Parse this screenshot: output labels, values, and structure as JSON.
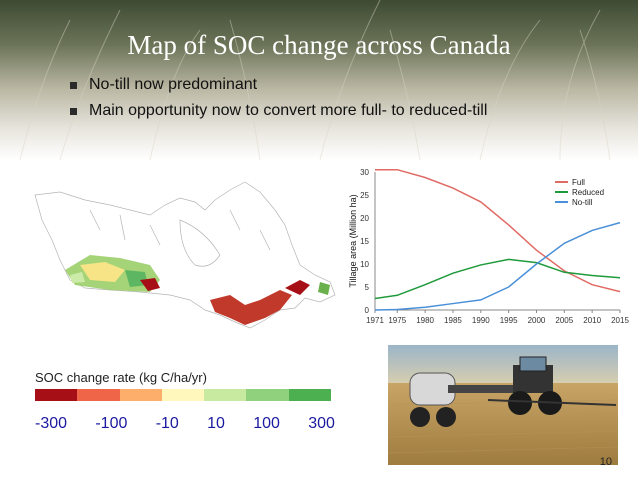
{
  "slide": {
    "title": "Map of SOC change across Canada",
    "bullets": [
      "No-till now predominant",
      "Main opportunity now to convert more full- to reduced-till"
    ],
    "page_number": "10"
  },
  "legend": {
    "title": "SOC change rate (kg C/ha/yr)",
    "labels": [
      "-300",
      "-100",
      "-10",
      "10",
      "100",
      "300"
    ],
    "colors": [
      "#a50f15",
      "#ef6548",
      "#fdae6b",
      "#fff7bc",
      "#c7e9a0",
      "#8fd17c",
      "#4caf50"
    ]
  },
  "chart_data": {
    "type": "line",
    "ylabel": "Tillage area (Million ha)",
    "xlabel": "",
    "ylim": [
      0,
      30
    ],
    "y_ticks": [
      "0",
      "5",
      "10",
      "15",
      "20",
      "25",
      "30"
    ],
    "x_ticks": [
      "1971",
      "1975",
      "1980",
      "1985",
      "1990",
      "1995",
      "2000",
      "2005",
      "2010",
      "2015"
    ],
    "legend_position": "top-right",
    "series": [
      {
        "name": "Full",
        "color": "#e06b64",
        "x": [
          1971,
          1975,
          1980,
          1985,
          1990,
          1995,
          2000,
          2005,
          2010,
          2015
        ],
        "y": [
          30.5,
          30.5,
          28.8,
          26.5,
          23.5,
          18.5,
          13.0,
          8.5,
          5.5,
          4.0
        ]
      },
      {
        "name": "Reduced",
        "color": "#1f9a3a",
        "x": [
          1971,
          1975,
          1980,
          1985,
          1990,
          1995,
          2000,
          2005,
          2010,
          2015
        ],
        "y": [
          2.5,
          3.2,
          5.5,
          8.0,
          9.8,
          11.0,
          10.3,
          8.2,
          7.5,
          7.0
        ]
      },
      {
        "name": "No-till",
        "color": "#4a90d9",
        "x": [
          1971,
          1975,
          1980,
          1985,
          1990,
          1995,
          2000,
          2005,
          2010,
          2015
        ],
        "y": [
          0.0,
          0.1,
          0.6,
          1.4,
          2.2,
          5.0,
          10.0,
          14.5,
          17.3,
          19.0
        ]
      }
    ]
  }
}
